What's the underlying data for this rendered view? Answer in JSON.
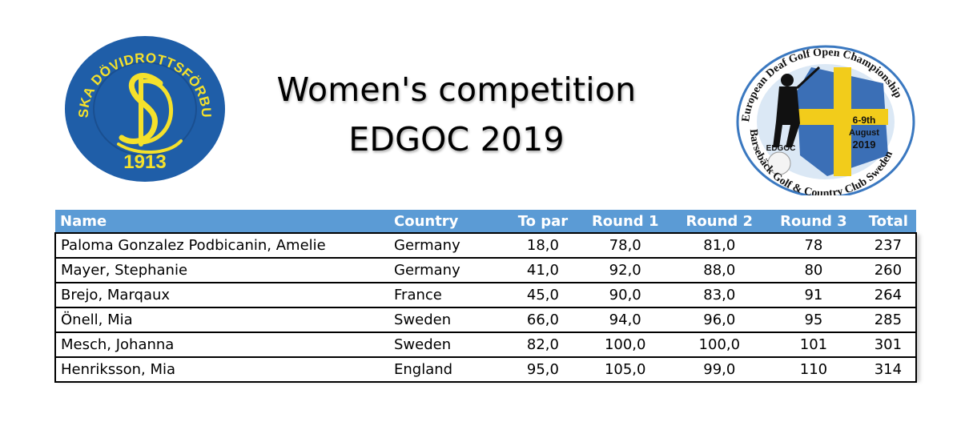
{
  "title": {
    "line1": "Women's competition",
    "line2": "EDGOC 2019"
  },
  "logo_left": {
    "ring_text": "SVENSKA DÖVIDROTTSFÖRBUNDET",
    "monogram": "SD",
    "year": "1913",
    "colors": {
      "ring": "#1f5ea8",
      "accent": "#f5e12b"
    }
  },
  "logo_right": {
    "arc_text_top": "European Deaf Golf Open Championship",
    "arc_text_bottom": "Barsebäck Golf & Country Club Sweden",
    "dates": "6-9th",
    "month": "August",
    "year": "2019",
    "badge": "EDGOC",
    "colors": {
      "ring": "#3a78c0",
      "flag_blue": "#3b6fb6",
      "flag_yellow": "#f2cc1b"
    }
  },
  "table": {
    "headers": [
      "Name",
      "Country",
      "To par",
      "Round 1",
      "Round 2",
      "Round 3",
      "Total"
    ],
    "rows": [
      [
        "Paloma Gonzalez Podbicanin, Amelie",
        "Germany",
        "18,0",
        "78,0",
        "81,0",
        "78",
        "237"
      ],
      [
        "Mayer, Stephanie",
        "Germany",
        "41,0",
        "92,0",
        "88,0",
        "80",
        "260"
      ],
      [
        "Brejo, Marqaux",
        "France",
        "45,0",
        "90,0",
        "83,0",
        "91",
        "264"
      ],
      [
        "Önell, Mia",
        "Sweden",
        "66,0",
        "94,0",
        "96,0",
        "95",
        "285"
      ],
      [
        "Mesch, Johanna",
        "Sweden",
        "82,0",
        "100,0",
        "100,0",
        "101",
        "301"
      ],
      [
        "Henriksson, Mia",
        "England",
        "95,0",
        "105,0",
        "99,0",
        "110",
        "314"
      ]
    ],
    "header_color": "#5b9bd5"
  }
}
